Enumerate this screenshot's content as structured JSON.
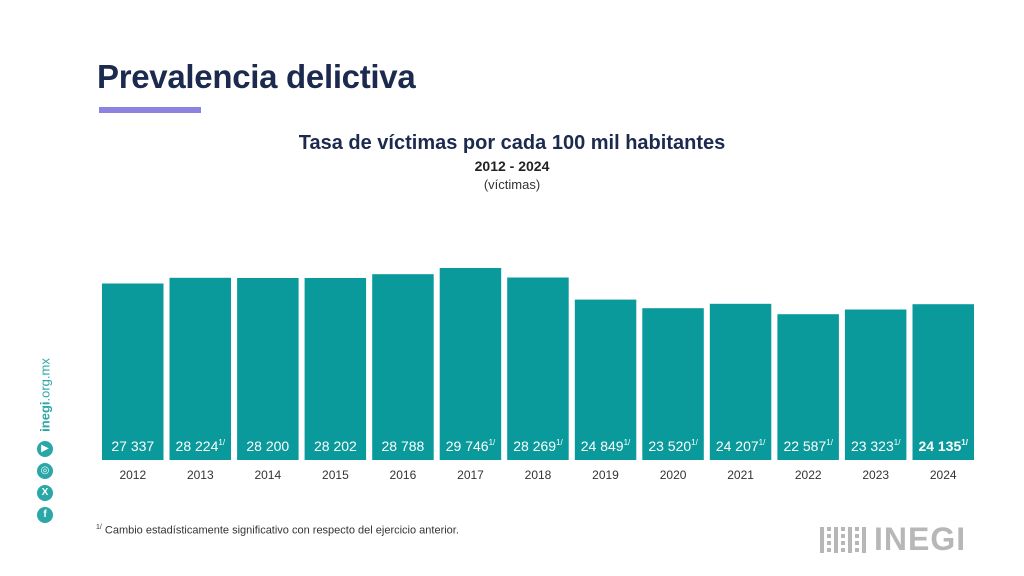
{
  "header": {
    "title": "Prevalencia delictiva"
  },
  "chart_data": {
    "type": "bar",
    "title": "Tasa de víctimas por cada 100 mil habitantes",
    "subtitle": "2012 - 2024",
    "unit": "(víctimas)",
    "categories": [
      "2012",
      "2013",
      "2014",
      "2015",
      "2016",
      "2017",
      "2018",
      "2019",
      "2020",
      "2021",
      "2022",
      "2023",
      "2024"
    ],
    "values": [
      27337,
      28224,
      28200,
      28202,
      28788,
      29746,
      28269,
      24849,
      23520,
      24207,
      22587,
      23323,
      24135
    ],
    "labels": [
      "27 337",
      "28 224",
      "28 200",
      "28 202",
      "28 788",
      "29 746",
      "28 269",
      "24 849",
      "23 520",
      "24 207",
      "22 587",
      "23 323",
      "24 135"
    ],
    "significant": [
      false,
      true,
      false,
      false,
      false,
      true,
      true,
      true,
      true,
      true,
      true,
      true,
      true
    ],
    "significance_mark": "1/",
    "highlight_last": true,
    "bar_color": "#0a9a9c",
    "label_color": "#ffffff",
    "ylim": [
      0,
      30000
    ],
    "grid": false,
    "xlabel": "",
    "ylabel": ""
  },
  "footnote": {
    "mark": "1/",
    "text": " Cambio estadísticamente significativo con respecto del ejercicio anterior."
  },
  "sidebar": {
    "url_bold": "inegi",
    "url_rest": ".org.mx",
    "icons": [
      "youtube-icon",
      "instagram-icon",
      "x-icon",
      "facebook-icon"
    ]
  },
  "logo": {
    "text": "INEGI"
  },
  "colors": {
    "title": "#1b2a4e",
    "accent": "#8b82e2",
    "teal": "#2aa7a6",
    "logo_gray": "#b7b7b7"
  }
}
